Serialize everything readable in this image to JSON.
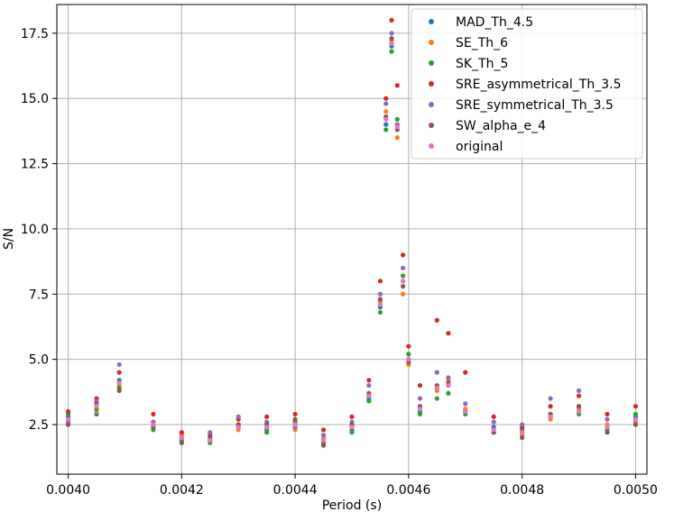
{
  "chart_data": {
    "type": "scatter",
    "title": "",
    "xlabel": "Period (s)",
    "ylabel": "S/N",
    "xlim": [
      0.00398,
      0.00502
    ],
    "ylim": [
      0.6,
      18.6
    ],
    "grid": true,
    "legend_position": "top-right",
    "xticks": [
      0.004,
      0.0042,
      0.0044,
      0.0046,
      0.0048,
      0.005
    ],
    "xtick_labels": [
      "0.0040",
      "0.0042",
      "0.0044",
      "0.0046",
      "0.0048",
      "0.0050"
    ],
    "yticks": [
      2.5,
      5.0,
      7.5,
      10.0,
      12.5,
      15.0,
      17.5
    ],
    "ytick_labels": [
      "2.5",
      "5.0",
      "7.5",
      "10.0",
      "12.5",
      "15.0",
      "17.5"
    ],
    "x_range": [
      0.004,
      0.005
    ],
    "series": [
      {
        "name": "MAD_Th_4.5",
        "color": "#1f77b4",
        "x": [
          0.004,
          0.00405,
          0.00409,
          0.00415,
          0.0042,
          0.00425,
          0.0043,
          0.00435,
          0.0044,
          0.00445,
          0.0045,
          0.00453,
          0.00455,
          0.00456,
          0.00457,
          0.00458,
          0.00459,
          0.0046,
          0.00462,
          0.00465,
          0.00467,
          0.0047,
          0.00475,
          0.0048,
          0.00485,
          0.0049,
          0.00495,
          0.005
        ],
        "y": [
          2.8,
          2.9,
          4.2,
          2.4,
          2.0,
          1.9,
          2.4,
          2.3,
          2.5,
          1.9,
          2.3,
          3.5,
          7.0,
          14.0,
          17.0,
          14.0,
          8.0,
          5.0,
          3.0,
          3.9,
          4.0,
          3.0,
          2.4,
          2.2,
          2.8,
          3.0,
          2.4,
          2.8
        ]
      },
      {
        "name": "SE_Th_6",
        "color": "#ff7f0e",
        "x": [
          0.004,
          0.00405,
          0.00409,
          0.00415,
          0.0042,
          0.00425,
          0.0043,
          0.00435,
          0.0044,
          0.00445,
          0.0045,
          0.00453,
          0.00455,
          0.00456,
          0.00457,
          0.00458,
          0.00459,
          0.0046,
          0.00462,
          0.00465,
          0.00467,
          0.0047,
          0.00475,
          0.0048,
          0.00485,
          0.0049,
          0.00495,
          0.005
        ],
        "y": [
          2.7,
          3.0,
          4.0,
          2.5,
          2.1,
          2.0,
          2.3,
          2.4,
          2.3,
          2.0,
          2.4,
          3.6,
          7.2,
          14.5,
          17.2,
          13.5,
          7.5,
          4.8,
          3.1,
          3.8,
          4.2,
          3.1,
          2.3,
          2.1,
          2.7,
          3.1,
          2.5,
          2.6
        ]
      },
      {
        "name": "SK_Th_5",
        "color": "#2ca02c",
        "x": [
          0.004,
          0.00405,
          0.00409,
          0.00415,
          0.0042,
          0.00425,
          0.0043,
          0.00435,
          0.0044,
          0.00445,
          0.0045,
          0.00453,
          0.00455,
          0.00456,
          0.00457,
          0.00458,
          0.00459,
          0.0046,
          0.00462,
          0.00465,
          0.00467,
          0.0047,
          0.00475,
          0.0048,
          0.00485,
          0.0049,
          0.00495,
          0.005
        ],
        "y": [
          2.9,
          3.1,
          3.9,
          2.3,
          1.9,
          1.8,
          2.5,
          2.2,
          2.6,
          1.8,
          2.2,
          3.4,
          6.8,
          13.8,
          16.8,
          14.2,
          8.2,
          5.2,
          2.9,
          3.5,
          3.7,
          2.9,
          2.2,
          2.3,
          2.9,
          2.9,
          2.3,
          2.9
        ]
      },
      {
        "name": "SRE_asymmetrical_Th_3.5",
        "color": "#d62728",
        "x": [
          0.004,
          0.00405,
          0.00409,
          0.00415,
          0.0042,
          0.00425,
          0.0043,
          0.00435,
          0.0044,
          0.00445,
          0.0045,
          0.00453,
          0.00455,
          0.00456,
          0.00457,
          0.00458,
          0.00459,
          0.0046,
          0.00462,
          0.00465,
          0.00467,
          0.0047,
          0.00475,
          0.0048,
          0.00485,
          0.0049,
          0.00495,
          0.005
        ],
        "y": [
          3.0,
          3.5,
          4.5,
          2.9,
          2.2,
          2.1,
          2.7,
          2.8,
          2.9,
          2.3,
          2.8,
          4.2,
          8.0,
          15.0,
          18.0,
          15.5,
          9.0,
          5.5,
          4.0,
          6.5,
          6.0,
          4.5,
          2.8,
          2.4,
          3.2,
          3.6,
          2.9,
          3.2
        ]
      },
      {
        "name": "SRE_symmetrical_Th_3.5",
        "color": "#9467bd",
        "x": [
          0.004,
          0.00405,
          0.00409,
          0.00415,
          0.0042,
          0.00425,
          0.0043,
          0.00435,
          0.0044,
          0.00445,
          0.0045,
          0.00453,
          0.00455,
          0.00456,
          0.00457,
          0.00458,
          0.00459,
          0.0046,
          0.00462,
          0.00465,
          0.00467,
          0.0047,
          0.00475,
          0.0048,
          0.00485,
          0.0049,
          0.00495,
          0.005
        ],
        "y": [
          2.6,
          3.4,
          4.8,
          2.6,
          2.0,
          2.2,
          2.8,
          2.6,
          2.4,
          2.1,
          2.6,
          4.0,
          7.5,
          14.8,
          17.5,
          14.0,
          8.5,
          5.0,
          3.5,
          4.5,
          4.3,
          3.3,
          2.6,
          2.5,
          3.5,
          3.8,
          2.7,
          2.7
        ]
      },
      {
        "name": "SW_alpha_e_4",
        "color": "#8c564b",
        "x": [
          0.004,
          0.00405,
          0.00409,
          0.00415,
          0.0042,
          0.00425,
          0.0043,
          0.00435,
          0.0044,
          0.00445,
          0.0045,
          0.00453,
          0.00455,
          0.00456,
          0.00457,
          0.00458,
          0.00459,
          0.0046,
          0.00462,
          0.00465,
          0.00467,
          0.0047,
          0.00475,
          0.0048,
          0.00485,
          0.0049,
          0.00495,
          0.005
        ],
        "y": [
          2.5,
          3.3,
          3.8,
          2.4,
          1.8,
          2.0,
          2.5,
          2.5,
          2.7,
          1.7,
          2.5,
          3.7,
          7.3,
          14.3,
          17.3,
          13.8,
          7.8,
          4.9,
          3.2,
          4.0,
          4.1,
          3.0,
          2.2,
          2.0,
          2.9,
          3.2,
          2.2,
          2.5
        ]
      },
      {
        "name": "original",
        "color": "#e377c2",
        "x": [
          0.004,
          0.00405,
          0.00409,
          0.00415,
          0.0042,
          0.00425,
          0.0043,
          0.00435,
          0.0044,
          0.00445,
          0.0045,
          0.00453,
          0.00455,
          0.00456,
          0.00457,
          0.00458,
          0.00459,
          0.0046,
          0.00462,
          0.00465,
          0.00467,
          0.0047,
          0.00475,
          0.0048,
          0.00485,
          0.0049,
          0.00495,
          0.005
        ],
        "y": [
          2.7,
          3.2,
          4.1,
          2.5,
          2.0,
          1.9,
          2.4,
          2.4,
          2.5,
          1.9,
          2.4,
          3.6,
          7.1,
          14.2,
          17.1,
          13.9,
          8.0,
          5.0,
          3.1,
          3.9,
          4.0,
          3.0,
          2.3,
          2.2,
          2.8,
          3.0,
          2.4,
          2.7
        ]
      }
    ]
  }
}
